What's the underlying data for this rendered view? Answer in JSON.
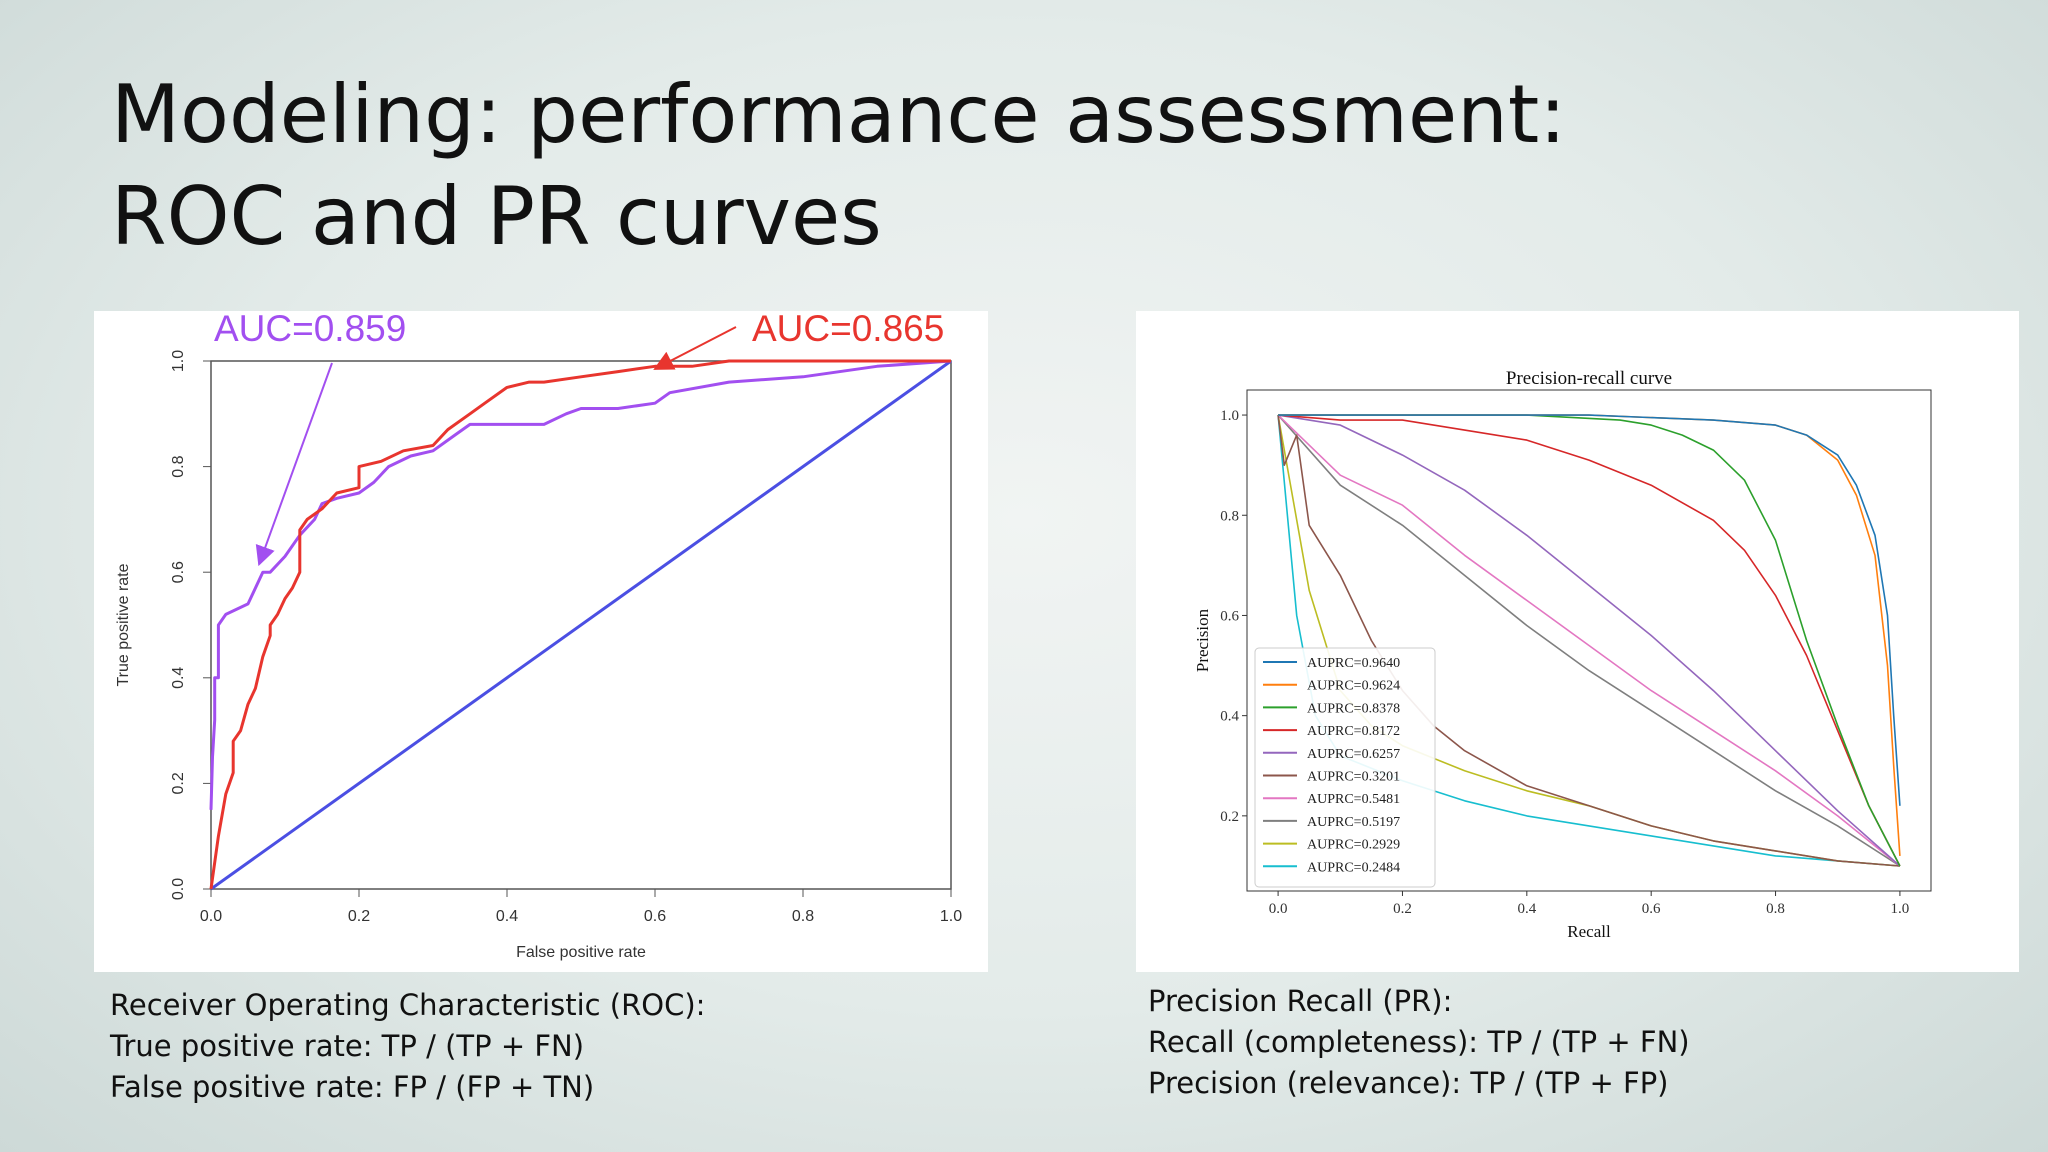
{
  "slide": {
    "title_line1": "Modeling: performance assessment:",
    "title_line2": "ROC and PR curves"
  },
  "captions": {
    "roc": [
      "Receiver Operating Characteristic (ROC):",
      "True positive rate: TP / (TP + FN)",
      "False positive rate: FP / (FP + TN)"
    ],
    "pr": [
      "Precision Recall (PR):",
      "Recall (completeness): TP / (TP + FN)",
      "Precision (relevance): TP / (TP + FP)"
    ]
  },
  "chart_data": [
    {
      "id": "roc",
      "type": "line",
      "title": "",
      "xlabel": "False positive rate",
      "ylabel": "True positive rate",
      "xlim": [
        0,
        1
      ],
      "ylim": [
        0,
        1
      ],
      "xticks": [
        "0.0",
        "0.2",
        "0.4",
        "0.6",
        "0.8",
        "1.0"
      ],
      "yticks": [
        "0.0",
        "0.2",
        "0.4",
        "0.6",
        "0.8",
        "1.0"
      ],
      "grid": false,
      "annotations": [
        {
          "text": "AUC=0.859",
          "color": "#a24ff0",
          "series": 0
        },
        {
          "text": "AUC=0.865",
          "color": "#e8352e",
          "series": 1
        }
      ],
      "series": [
        {
          "color": "#a24ff0",
          "x": [
            0,
            0.002,
            0.005,
            0.005,
            0.01,
            0.01,
            0.02,
            0.05,
            0.07,
            0.08,
            0.1,
            0.12,
            0.14,
            0.15,
            0.17,
            0.2,
            0.22,
            0.24,
            0.27,
            0.3,
            0.33,
            0.35,
            0.4,
            0.45,
            0.48,
            0.5,
            0.55,
            0.6,
            0.62,
            0.7,
            0.8,
            0.9,
            1.0
          ],
          "y": [
            0.15,
            0.25,
            0.32,
            0.4,
            0.4,
            0.5,
            0.52,
            0.54,
            0.6,
            0.6,
            0.63,
            0.67,
            0.7,
            0.73,
            0.74,
            0.75,
            0.77,
            0.8,
            0.82,
            0.83,
            0.86,
            0.88,
            0.88,
            0.88,
            0.9,
            0.91,
            0.91,
            0.92,
            0.94,
            0.96,
            0.97,
            0.99,
            1.0
          ]
        },
        {
          "color": "#e8352e",
          "x": [
            0,
            0.005,
            0.01,
            0.02,
            0.03,
            0.03,
            0.04,
            0.05,
            0.06,
            0.07,
            0.08,
            0.08,
            0.09,
            0.1,
            0.11,
            0.12,
            0.12,
            0.13,
            0.15,
            0.17,
            0.2,
            0.2,
            0.23,
            0.26,
            0.3,
            0.32,
            0.35,
            0.37,
            0.4,
            0.43,
            0.45,
            0.5,
            0.55,
            0.6,
            0.65,
            0.7,
            0.75,
            1.0
          ],
          "y": [
            0,
            0.05,
            0.1,
            0.18,
            0.22,
            0.28,
            0.3,
            0.35,
            0.38,
            0.44,
            0.48,
            0.5,
            0.52,
            0.55,
            0.57,
            0.6,
            0.68,
            0.7,
            0.72,
            0.75,
            0.76,
            0.8,
            0.81,
            0.83,
            0.84,
            0.87,
            0.9,
            0.92,
            0.95,
            0.96,
            0.96,
            0.97,
            0.98,
            0.99,
            0.99,
            1.0,
            1.0,
            1.0
          ]
        },
        {
          "color": "#4b4fe3",
          "x": [
            0,
            1
          ],
          "y": [
            0,
            1
          ]
        }
      ]
    },
    {
      "id": "pr",
      "type": "line",
      "title": "Precision-recall curve",
      "xlabel": "Recall",
      "ylabel": "Precision",
      "xlim": [
        -0.05,
        1.05
      ],
      "ylim": [
        0.05,
        1.05
      ],
      "xticks": [
        "0.0",
        "0.2",
        "0.4",
        "0.6",
        "0.8",
        "1.0"
      ],
      "yticks": [
        "0.2",
        "0.4",
        "0.6",
        "0.8",
        "1.0"
      ],
      "grid": false,
      "legend": "bottom-left",
      "series": [
        {
          "name": "AUPRC=0.9640",
          "color": "#1f77b4",
          "x": [
            0,
            0.1,
            0.3,
            0.5,
            0.7,
            0.8,
            0.85,
            0.9,
            0.93,
            0.96,
            0.98,
            0.99,
            1.0
          ],
          "y": [
            1,
            1,
            1,
            1,
            0.99,
            0.98,
            0.96,
            0.92,
            0.86,
            0.76,
            0.6,
            0.4,
            0.22
          ]
        },
        {
          "name": "AUPRC=0.9624",
          "color": "#ff7f0e",
          "x": [
            0,
            0.1,
            0.3,
            0.5,
            0.7,
            0.8,
            0.85,
            0.9,
            0.93,
            0.96,
            0.98,
            0.99,
            1.0
          ],
          "y": [
            1,
            1,
            1,
            1,
            0.99,
            0.98,
            0.96,
            0.91,
            0.84,
            0.72,
            0.5,
            0.3,
            0.12
          ]
        },
        {
          "name": "AUPRC=0.8378",
          "color": "#2ca02c",
          "x": [
            0,
            0.2,
            0.4,
            0.55,
            0.6,
            0.65,
            0.7,
            0.75,
            0.8,
            0.85,
            0.9,
            0.95,
            1.0
          ],
          "y": [
            1,
            1,
            1,
            0.99,
            0.98,
            0.96,
            0.93,
            0.87,
            0.75,
            0.55,
            0.38,
            0.22,
            0.1
          ]
        },
        {
          "name": "AUPRC=0.8172",
          "color": "#d62728",
          "x": [
            0,
            0.1,
            0.2,
            0.3,
            0.4,
            0.5,
            0.6,
            0.7,
            0.75,
            0.8,
            0.85,
            0.9,
            0.95,
            1.0
          ],
          "y": [
            1,
            0.99,
            0.99,
            0.97,
            0.95,
            0.91,
            0.86,
            0.79,
            0.73,
            0.64,
            0.52,
            0.37,
            0.22,
            0.1
          ]
        },
        {
          "name": "AUPRC=0.6257",
          "color": "#9467bd",
          "x": [
            0,
            0.1,
            0.2,
            0.3,
            0.4,
            0.5,
            0.6,
            0.7,
            0.8,
            0.9,
            1.0
          ],
          "y": [
            1,
            0.98,
            0.92,
            0.85,
            0.76,
            0.66,
            0.56,
            0.45,
            0.33,
            0.21,
            0.1
          ]
        },
        {
          "name": "AUPRC=0.3201",
          "color": "#8c564b",
          "x": [
            0,
            0.01,
            0.03,
            0.05,
            0.08,
            0.1,
            0.15,
            0.2,
            0.25,
            0.3,
            0.4,
            0.5,
            0.6,
            0.7,
            0.8,
            0.9,
            1.0
          ],
          "y": [
            1,
            0.9,
            0.96,
            0.78,
            0.72,
            0.68,
            0.55,
            0.45,
            0.38,
            0.33,
            0.26,
            0.22,
            0.18,
            0.15,
            0.13,
            0.11,
            0.1
          ]
        },
        {
          "name": "AUPRC=0.5481",
          "color": "#e377c2",
          "x": [
            0,
            0.1,
            0.2,
            0.3,
            0.4,
            0.5,
            0.6,
            0.7,
            0.8,
            0.9,
            1.0
          ],
          "y": [
            1,
            0.88,
            0.82,
            0.72,
            0.63,
            0.54,
            0.45,
            0.37,
            0.29,
            0.2,
            0.1
          ]
        },
        {
          "name": "AUPRC=0.5197",
          "color": "#7f7f7f",
          "x": [
            0,
            0.1,
            0.2,
            0.3,
            0.4,
            0.5,
            0.6,
            0.7,
            0.8,
            0.9,
            1.0
          ],
          "y": [
            1,
            0.86,
            0.78,
            0.68,
            0.58,
            0.49,
            0.41,
            0.33,
            0.25,
            0.18,
            0.1
          ]
        },
        {
          "name": "AUPRC=0.2929",
          "color": "#bcbd22",
          "x": [
            0,
            0.05,
            0.1,
            0.15,
            0.2,
            0.3,
            0.4,
            0.5,
            0.6,
            0.7,
            0.8,
            0.9,
            1.0
          ],
          "y": [
            1,
            0.65,
            0.45,
            0.38,
            0.34,
            0.29,
            0.25,
            0.22,
            0.18,
            0.15,
            0.13,
            0.11,
            0.1
          ]
        },
        {
          "name": "AUPRC=0.2484",
          "color": "#17becf",
          "x": [
            0,
            0.03,
            0.06,
            0.1,
            0.2,
            0.3,
            0.4,
            0.5,
            0.6,
            0.7,
            0.8,
            0.9,
            1.0
          ],
          "y": [
            1,
            0.6,
            0.4,
            0.32,
            0.27,
            0.23,
            0.2,
            0.18,
            0.16,
            0.14,
            0.12,
            0.11,
            0.1
          ]
        }
      ]
    }
  ]
}
